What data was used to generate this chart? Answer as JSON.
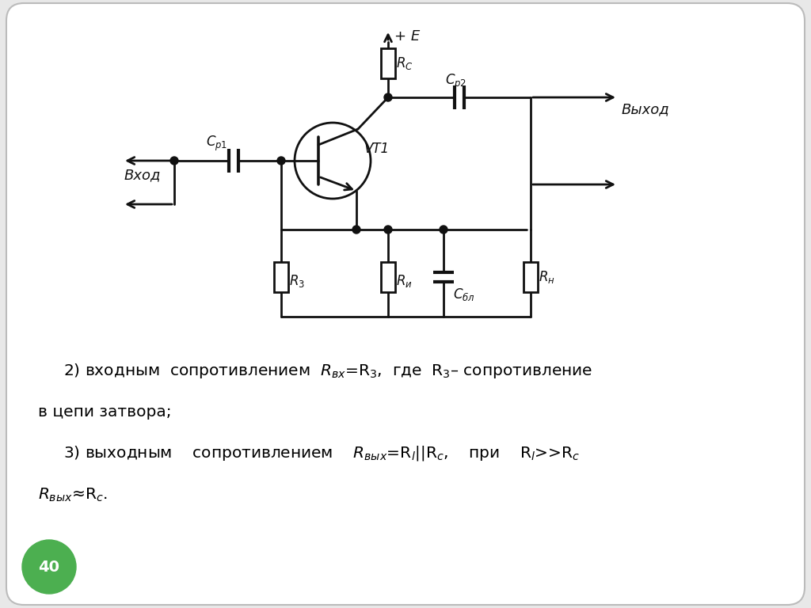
{
  "bg_color": "#ffffff",
  "border_color": "#bbbbbb",
  "line_color": "#111111",
  "line_width": 2.0,
  "text_color": "#111111",
  "page_number": "40",
  "page_number_bg": "#4caf50",
  "figsize": [
    10.24,
    7.68
  ],
  "dpi": 100,
  "xlim": [
    0,
    1024
  ],
  "ylim": [
    0,
    768
  ]
}
